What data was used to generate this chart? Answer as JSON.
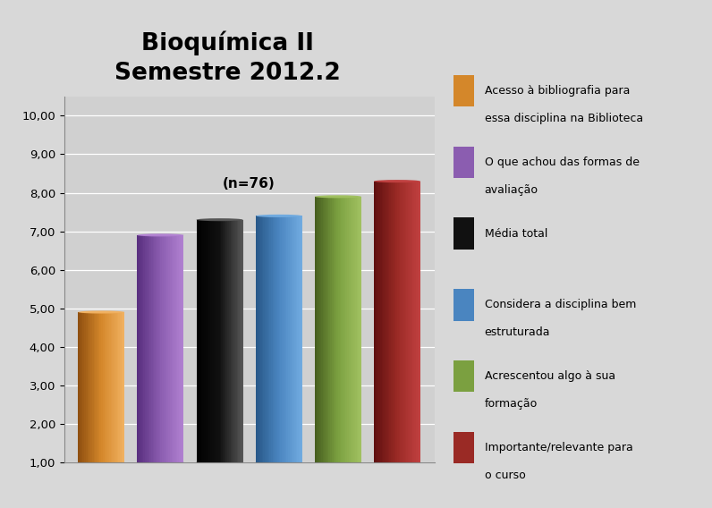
{
  "title": "Bioquímica II\nSemestre 2012.2",
  "values": [
    4.9,
    6.9,
    7.3,
    7.4,
    7.9,
    8.3
  ],
  "colors": [
    "#D4872A",
    "#8B5DB0",
    "#111111",
    "#4A85C0",
    "#7BA040",
    "#9A2A25"
  ],
  "colors_light": [
    "#F0B060",
    "#B080D0",
    "#555555",
    "#70AADF",
    "#A0C060",
    "#C04040"
  ],
  "colors_dark": [
    "#905010",
    "#5A3080",
    "#000000",
    "#285888",
    "#486020",
    "#601010"
  ],
  "legend_labels": [
    "Acesso à bibliografia para\nessa disciplina na Biblioteca",
    "O que achou das formas de\navaliação",
    "Média total",
    "Considera a disciplina bem\nestruturada",
    "Acrescentou algo à sua\nformação",
    "Importante/relevante para\no curso"
  ],
  "xlabel": "(n=76)",
  "ylim": [
    1.0,
    10.5
  ],
  "yticks": [
    1.0,
    2.0,
    3.0,
    4.0,
    5.0,
    6.0,
    7.0,
    8.0,
    9.0,
    10.0
  ],
  "ytick_labels": [
    "1,00",
    "2,00",
    "3,00",
    "4,00",
    "5,00",
    "6,00",
    "7,00",
    "8,00",
    "9,00",
    "10,00"
  ],
  "background_color": "#D8D8D8",
  "plot_bg_color": "#D0D0D0",
  "title_fontsize": 19,
  "legend_fontsize": 9,
  "bar_bottom": 1.0,
  "bar_width": 0.55,
  "ellipse_ratio": 0.13
}
